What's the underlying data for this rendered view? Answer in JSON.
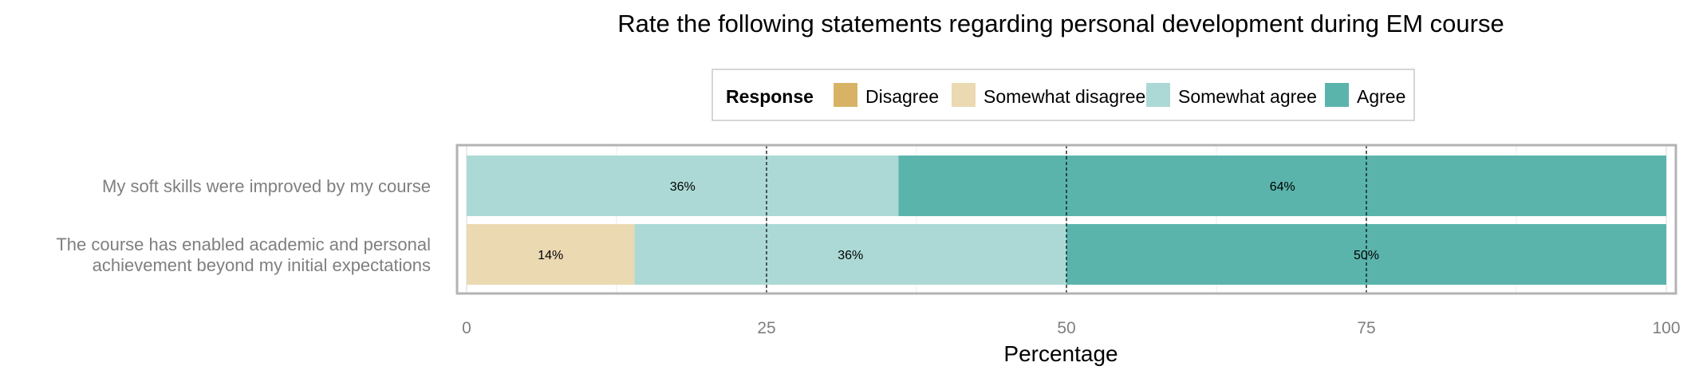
{
  "chart_data": {
    "type": "bar",
    "orientation": "horizontal",
    "stacked": true,
    "title": "Rate the following statements regarding personal development during EM course",
    "xlabel": "Percentage",
    "ylabel": "",
    "xlim": [
      0,
      100
    ],
    "xticks": [
      0,
      25,
      50,
      75,
      100
    ],
    "reference_lines": [
      25,
      50,
      75
    ],
    "grid": true,
    "legend": {
      "title": "Response",
      "position": "top"
    },
    "categories": [
      [
        "My soft skills were improved by my course"
      ],
      [
        "The course has enabled academic and personal",
        "achievement beyond my initial expectations"
      ]
    ],
    "series": [
      {
        "name": "Disagree",
        "color": "#d8b365",
        "values": [
          0,
          0
        ]
      },
      {
        "name": "Somewhat disagree",
        "color": "#ebd9b2",
        "values": [
          0,
          14
        ]
      },
      {
        "name": "Somewhat agree",
        "color": "#acd9d5",
        "values": [
          36,
          36
        ]
      },
      {
        "name": "Agree",
        "color": "#5ab4ac",
        "values": [
          64,
          50
        ]
      }
    ],
    "data_label_suffix": "%"
  }
}
